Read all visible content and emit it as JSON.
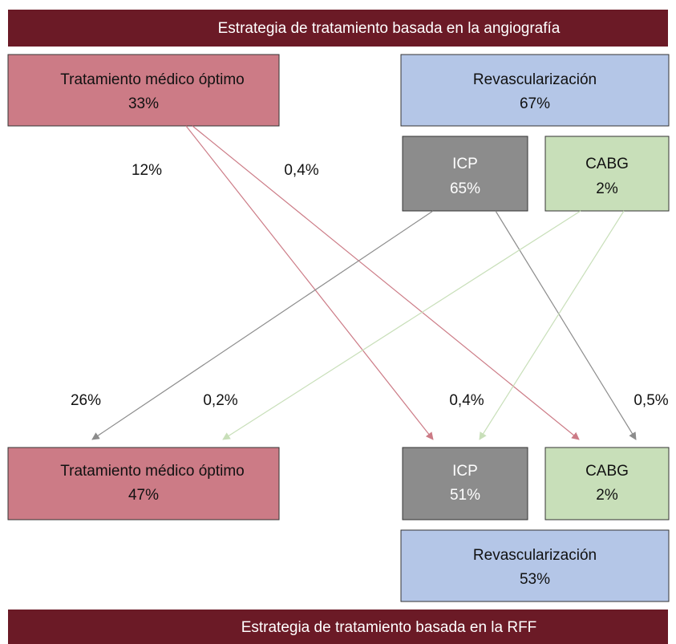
{
  "header": {
    "title": "Estrategia de tratamiento basada en la angiografía"
  },
  "angiography": {
    "medical": {
      "label": "Tratamiento médico óptimo",
      "value": "33%"
    },
    "revascularization": {
      "label": "Revascularización",
      "value": "67%"
    },
    "icp": {
      "label": "ICP",
      "value": "65%"
    },
    "cabg": {
      "label": "CABG",
      "value": "2%"
    }
  },
  "flows": {
    "medical_to_icp": "12%",
    "medical_to_cabg": "0,4%",
    "icp_to_medical": "26%",
    "cabg_to_medical": "0,2%",
    "cabg_to_icp": "0,4%",
    "icp_to_cabg": "0,5%"
  },
  "ffr": {
    "medical": {
      "label": "Tratamiento médico óptimo",
      "value": "47%"
    },
    "icp": {
      "label": "ICP",
      "value": "51%"
    },
    "cabg": {
      "label": "CABG",
      "value": "2%"
    },
    "revascularization": {
      "label": "Revascularización",
      "value": "53%"
    }
  },
  "footer": {
    "title": "Estrategia de tratamiento basada en la RFF"
  }
}
